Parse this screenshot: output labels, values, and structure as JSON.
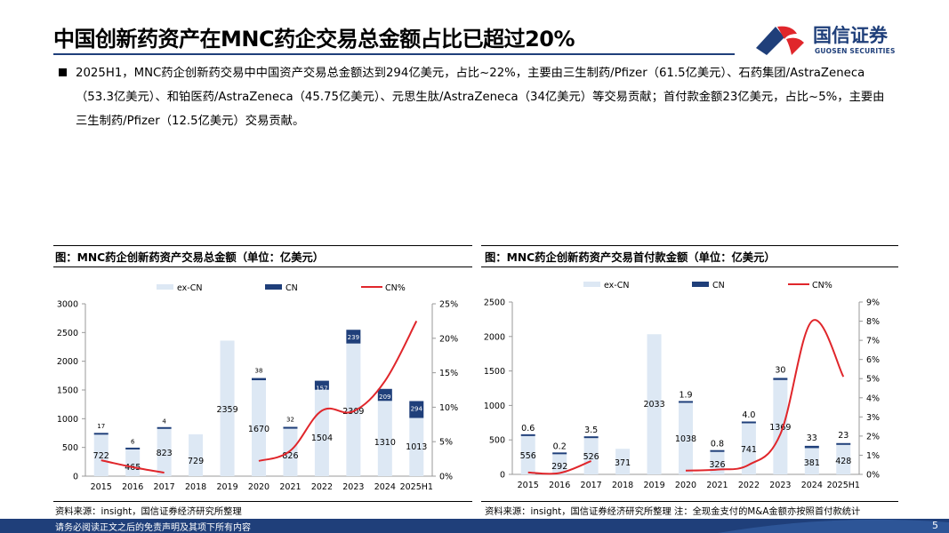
{
  "page": {
    "title": "中国创新药资产在MNC药企交易总金额占比已超过20%",
    "logo_cn": "国信证券",
    "logo_en": "GUOSEN SECURITIES",
    "bullet": "2025H1，MNC药企创新药交易中中国资产交易总金额达到294亿美元，占比~22%，主要由三生制药/Pfizer（61.5亿美元）、石药集团/AstraZeneca（53.3亿美元）、和铂医药/AstraZeneca（45.75亿美元）、元思生肽/AstraZeneca（34亿美元）等交易贡献；首付款金额23亿美元，占比~5%，主要由三生制药/Pfizer（12.5亿美元）交易贡献。",
    "footer_text": "请务必阅读正文之后的免责声明及其项下所有内容",
    "page_number": "5",
    "colors": {
      "navy": "#1f3f7a",
      "light_blue": "#dde8f4",
      "red": "#e0262b"
    }
  },
  "chart_left": {
    "panel_title": "图：MNC药企创新药资产交易总金额（单位：亿美元）",
    "source": "资料来源：insight，国信证券经济研究所整理"
  },
  "chart_right": {
    "panel_title": "图：MNC药企创新药资产交易首付款金额（单位：亿美元）",
    "source": "资料来源：insight，国信证券经济研究所整理 注：全现金支付的M&A金额亦按照首付款统计"
  },
  "chart_data": [
    {
      "type": "bar",
      "categories": [
        "2015",
        "2016",
        "2017",
        "2018",
        "2019",
        "2020",
        "2021",
        "2022",
        "2023",
        "2024",
        "2025H1"
      ],
      "series": [
        {
          "name": "ex-CN",
          "type": "bar",
          "axis": "left",
          "values": [
            722,
            465,
            823,
            729,
            2359,
            1670,
            826,
            1504,
            2309,
            1310,
            1013
          ],
          "labels": [
            "722",
            "465",
            "823",
            "729",
            "2359",
            "1670",
            "826",
            "1504",
            "2309",
            "1310",
            "1013"
          ]
        },
        {
          "name": "CN",
          "type": "bar",
          "axis": "left",
          "values": [
            17,
            6,
            4,
            0,
            0,
            38,
            32,
            157,
            239,
            209,
            294
          ],
          "labels": [
            "17",
            "6",
            "4",
            "",
            "",
            "38",
            "32",
            "157",
            "239",
            "209",
            "294"
          ]
        },
        {
          "name": "CN%",
          "type": "line",
          "axis": "right",
          "values": [
            2.3,
            1.3,
            0.5,
            null,
            null,
            2.2,
            3.7,
            9.5,
            9.4,
            13.8,
            22.5
          ]
        }
      ],
      "ylim": [
        0,
        3000
      ],
      "yticks": [
        "0",
        "500",
        "1000",
        "1500",
        "2000",
        "2500",
        "3000"
      ],
      "y2lim": [
        0,
        25
      ],
      "y2ticks": [
        "0%",
        "5%",
        "10%",
        "15%",
        "20%",
        "25%"
      ],
      "legend": "top"
    },
    {
      "type": "bar",
      "categories": [
        "2015",
        "2016",
        "2017",
        "2018",
        "2019",
        "2020",
        "2021",
        "2022",
        "2023",
        "2024",
        "2025H1"
      ],
      "series": [
        {
          "name": "ex-CN",
          "type": "bar",
          "axis": "left",
          "values": [
            556,
            292,
            526,
            371,
            2033,
            1038,
            326,
            741,
            1369,
            381,
            428
          ],
          "labels": [
            "556",
            "292",
            "526",
            "371",
            "2033",
            "1038",
            "326",
            "741",
            "1369",
            "381",
            "428"
          ]
        },
        {
          "name": "CN",
          "type": "bar",
          "axis": "left",
          "values": [
            0.6,
            0.2,
            3.5,
            0,
            0,
            1.9,
            0.8,
            4.0,
            30,
            33,
            23
          ],
          "labels": [
            "0.6",
            "0.2",
            "3.5",
            "",
            "",
            "1.9",
            "0.8",
            "4.0",
            "30",
            "33",
            "23"
          ]
        },
        {
          "name": "CN%",
          "type": "line",
          "axis": "right",
          "values": [
            0.1,
            0.07,
            0.7,
            null,
            null,
            0.2,
            0.25,
            0.5,
            2.1,
            8.0,
            5.1
          ]
        }
      ],
      "ylim": [
        0,
        2500
      ],
      "yticks": [
        "0",
        "500",
        "1000",
        "1500",
        "2000",
        "2500"
      ],
      "y2lim": [
        0,
        9
      ],
      "y2ticks": [
        "0%",
        "1%",
        "2%",
        "3%",
        "4%",
        "5%",
        "6%",
        "7%",
        "8%",
        "9%"
      ],
      "legend": "top"
    }
  ]
}
